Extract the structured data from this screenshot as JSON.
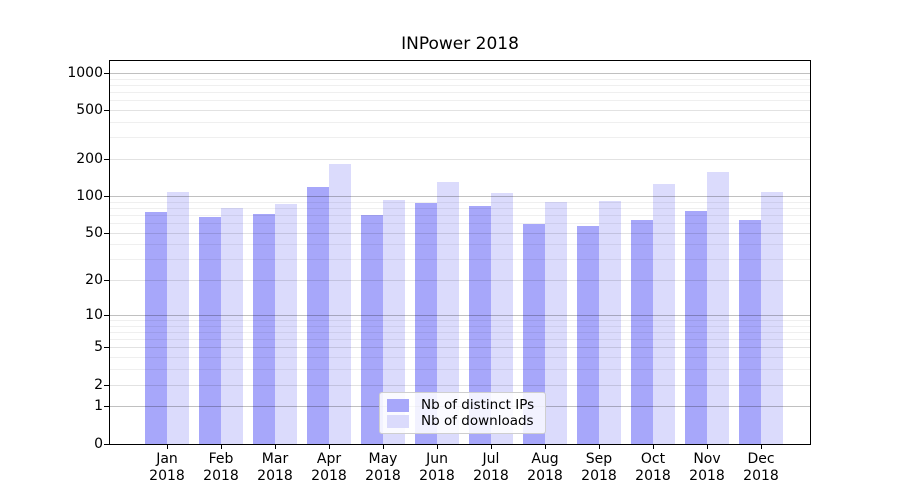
{
  "title": "INPower 2018",
  "chart_data": {
    "type": "bar",
    "title": "INPower 2018",
    "xlabel": "",
    "ylabel": "",
    "yscale": "log1p",
    "ylim": [
      0,
      1250
    ],
    "yticks": [
      0,
      1,
      2,
      5,
      10,
      20,
      50,
      100,
      200,
      500,
      1000
    ],
    "grid": true,
    "legend_position": "lower center",
    "categories": [
      "Jan",
      "Feb",
      "Mar",
      "Apr",
      "May",
      "Jun",
      "Jul",
      "Aug",
      "Sep",
      "Oct",
      "Nov",
      "Dec"
    ],
    "year": "2018",
    "series": [
      {
        "name": "Nb of distinct IPs",
        "color": "#a7a7fa",
        "values": [
          74,
          67,
          71,
          118,
          70,
          88,
          82,
          59,
          57,
          64,
          76,
          63
        ]
      },
      {
        "name": "Nb of downloads",
        "color": "#dbdbfc",
        "values": [
          107,
          80,
          86,
          181,
          92,
          131,
          105,
          89,
          91,
          125,
          156,
          107
        ]
      }
    ],
    "colors": {
      "decade_grid": "#c0c0c0",
      "major_grid": "#e2e2e2",
      "minor_grid": "#efefef",
      "spine": "#000000"
    }
  }
}
